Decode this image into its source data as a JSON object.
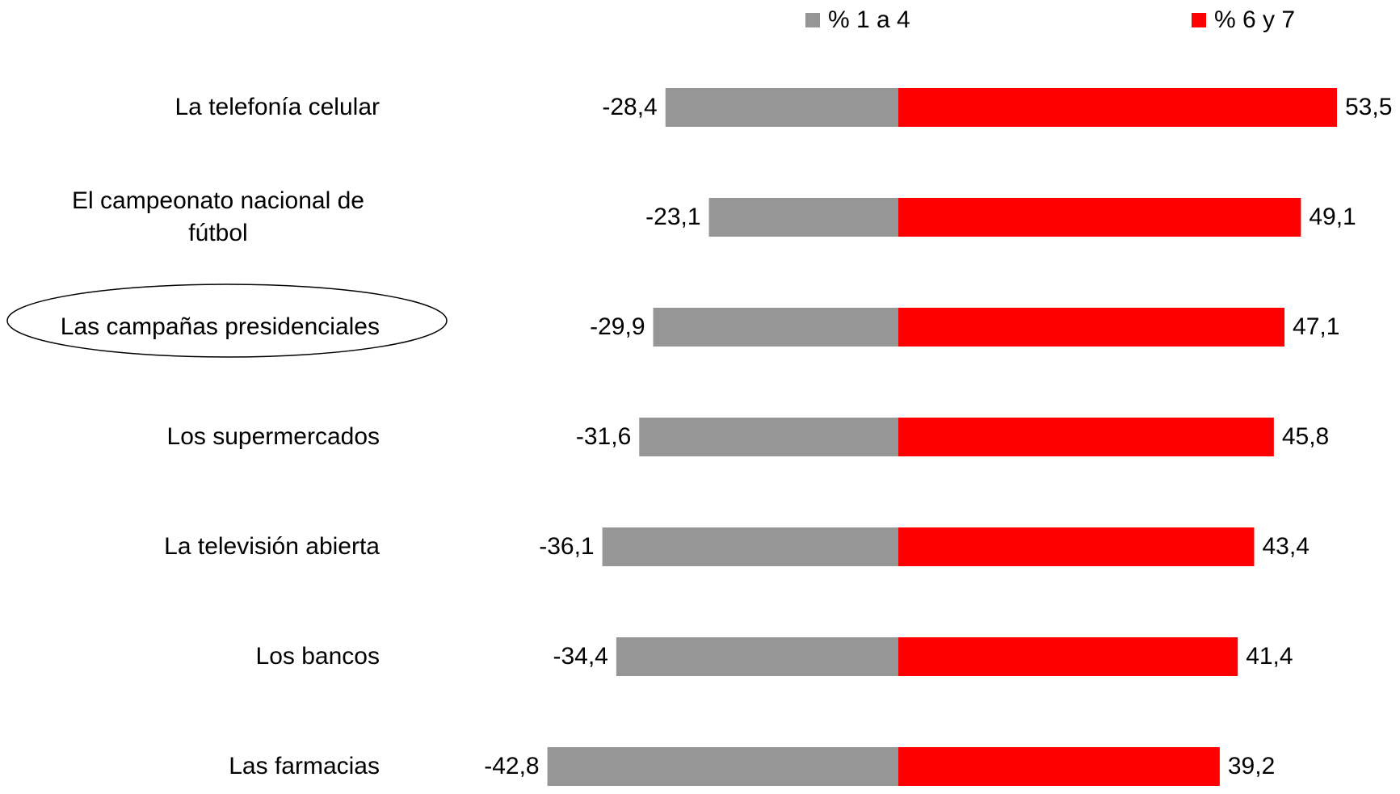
{
  "chart_data": {
    "type": "diverging-bar",
    "categories": [
      "La telefonía celular",
      "El campeonato nacional de fútbol",
      "Las campañas presidenciales",
      "Los supermercados",
      "La televisión abierta",
      "Los bancos",
      "Las farmacias"
    ],
    "highlight": "Las campañas presidenciales",
    "series": [
      {
        "name": "% 1 a 4",
        "color": "#969696",
        "values": [
          -28.4,
          -23.1,
          -29.9,
          -31.6,
          -36.1,
          -34.4,
          -42.8
        ],
        "value_labels": [
          "-28,4",
          "-23,1",
          "-29,9",
          "-31,6",
          "-36,1",
          "-34,4",
          "-42,8"
        ]
      },
      {
        "name": "% 6 y 7",
        "color": "#ff0000",
        "values": [
          53.5,
          49.1,
          47.1,
          45.8,
          43.4,
          41.4,
          39.2
        ],
        "value_labels": [
          "53,5",
          "49,1",
          "47,1",
          "45,8",
          "43,4",
          "41,4",
          "39,2"
        ]
      }
    ]
  }
}
